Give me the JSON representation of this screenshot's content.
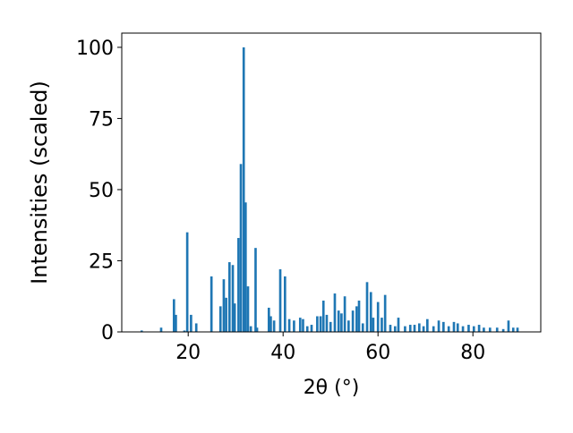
{
  "chart_data": {
    "type": "bar",
    "x": [
      10.2,
      14.3,
      17,
      17.4,
      19.2,
      19.8,
      20.6,
      21.7,
      24.9,
      26.8,
      27.5,
      28,
      28.7,
      29.4,
      29.8,
      30.6,
      31.1,
      31.7,
      32.1,
      32.6,
      33.2,
      34.2,
      34.5,
      37,
      37.4,
      38.1,
      39.4,
      40.4,
      41.3,
      42.3,
      43.6,
      44.2,
      45.1,
      46,
      47.2,
      47.9,
      48.5,
      49.2,
      50,
      50.9,
      51.7,
      52.3,
      53,
      53.8,
      54.7,
      55.5,
      56,
      56.8,
      57.7,
      58.5,
      59,
      60,
      60.8,
      61.5,
      62.6,
      63.6,
      64.3,
      65.7,
      66.8,
      67.7,
      68.7,
      69.6,
      70.4,
      71.7,
      72.8,
      73.8,
      74.9,
      76,
      76.8,
      77.9,
      79.1,
      80.2,
      81.3,
      82.3,
      83.6,
      85.1,
      86.4,
      87.5,
      88.5,
      89.4
    ],
    "values": [
      0.5,
      1.5,
      11.5,
      6,
      0.5,
      35,
      6,
      3,
      19.5,
      9,
      18.5,
      12,
      24.5,
      23.5,
      10,
      33,
      59,
      100,
      45.5,
      16,
      2,
      29.5,
      1.5,
      8.5,
      5.5,
      4,
      22,
      19.5,
      4.5,
      4,
      5,
      4.5,
      2,
      2.5,
      5.5,
      5.5,
      11,
      6,
      3.5,
      13.5,
      7.5,
      6.5,
      12.5,
      4,
      7.5,
      9,
      11,
      3,
      17.5,
      14,
      5,
      10.5,
      5,
      13,
      2.5,
      2,
      5,
      2,
      2.5,
      2.5,
      3,
      2,
      4.5,
      2,
      4,
      3.5,
      2,
      3.5,
      3,
      2,
      2.5,
      2,
      2.5,
      1.5,
      1.5,
      1.5,
      1,
      4,
      1.5,
      1.5
    ],
    "color": "#1f77b4",
    "xlabel": "2θ (°)",
    "ylabel": "Intensities (scaled)",
    "xlim": [
      6,
      94.3
    ],
    "ylim": [
      0,
      105
    ],
    "xticks": [
      20,
      40,
      60,
      80
    ],
    "yticks": [
      0,
      25,
      50,
      75,
      100
    ]
  }
}
